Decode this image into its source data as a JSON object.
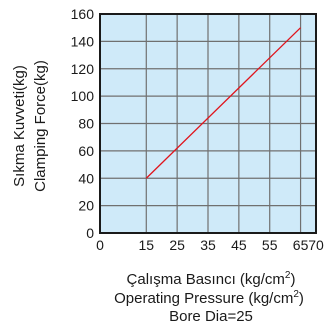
{
  "chart_data": {
    "type": "line",
    "xlabel_lines": [
      "Çalışma Basıncı (kg/cm",
      "Operating Pressure (kg/cm"
    ],
    "xlabel_unit_superscript": "2",
    "xlabel_unit_close": ")",
    "note": "Bore Dia=25",
    "ylabel_lines": [
      "Sıkma Kuvveti(kg)",
      "Clamping Force(kg)"
    ],
    "xlim": [
      0,
      70
    ],
    "ylim": [
      0,
      160
    ],
    "x_ticks": [
      0,
      15,
      25,
      35,
      45,
      55,
      65,
      70
    ],
    "x_gridlines": [
      15,
      25,
      35,
      45,
      55,
      65
    ],
    "y_ticks": [
      0,
      20,
      40,
      60,
      80,
      100,
      120,
      140,
      160
    ],
    "grid": true,
    "series": [
      {
        "x": [
          15,
          65
        ],
        "y": [
          40,
          150
        ]
      }
    ],
    "colors": {
      "plot_background": "#cfeaf9",
      "grid": "#707070",
      "frame": "#1a1a1a",
      "line": "#e0141c"
    }
  }
}
